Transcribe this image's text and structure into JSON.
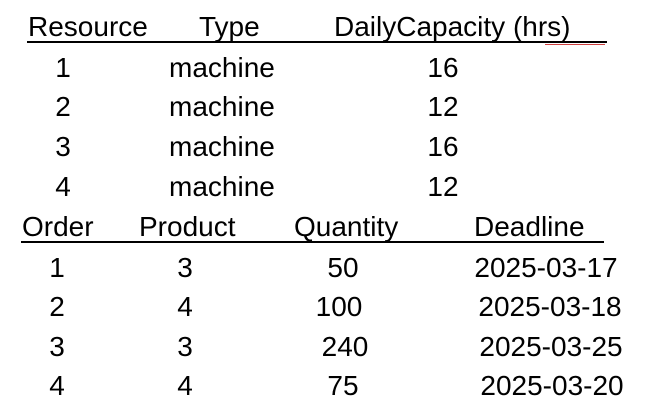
{
  "resources_table": {
    "headers": [
      "Resource",
      "Type",
      "DailyCapacity (hrs)"
    ],
    "rows": [
      [
        "1",
        "machine",
        "16"
      ],
      [
        "2",
        "machine",
        "12"
      ],
      [
        "3",
        "machine",
        "16"
      ],
      [
        "4",
        "machine",
        "12"
      ]
    ]
  },
  "orders_table": {
    "headers": [
      "Order",
      "Product",
      "Quantity",
      "Deadline"
    ],
    "rows": [
      [
        "1",
        "3",
        "50",
        "2025-03-17"
      ],
      [
        "2",
        "4",
        "100",
        "2025-03-18"
      ],
      [
        "3",
        "3",
        "240",
        "2025-03-25"
      ],
      [
        "4",
        "4",
        "75",
        "2025-03-20"
      ]
    ]
  }
}
